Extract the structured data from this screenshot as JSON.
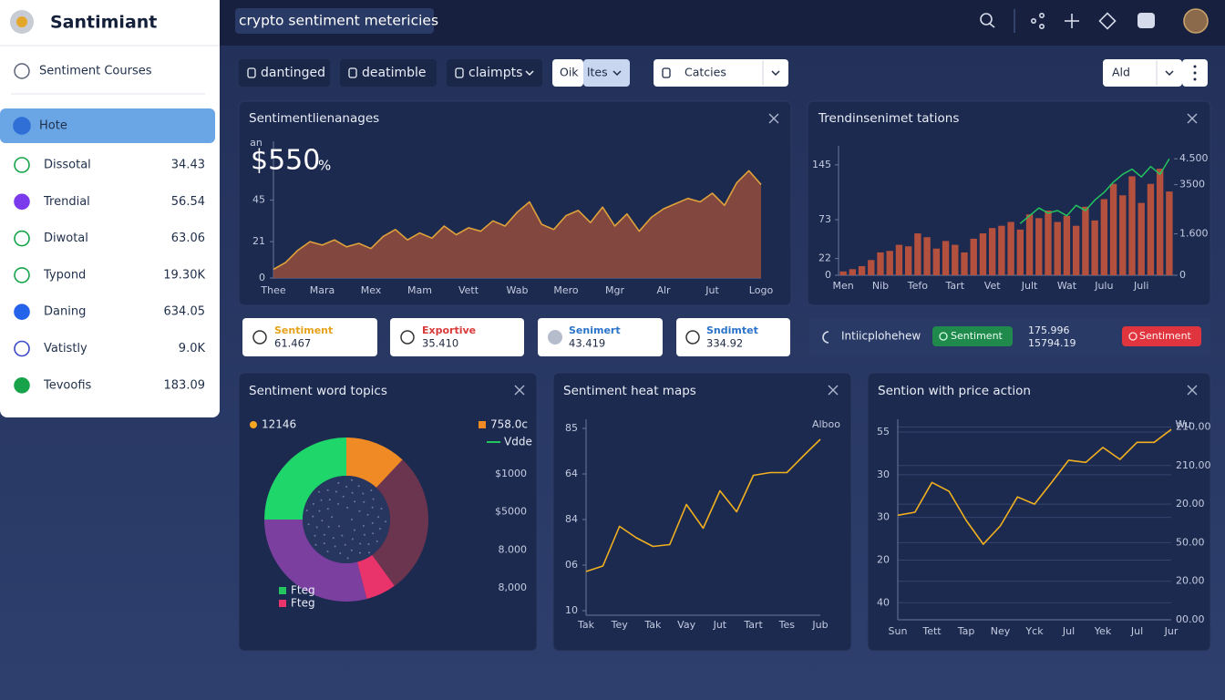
{
  "sidebar": {
    "brand": "Santimiant",
    "section": "Sentiment Courses",
    "items": [
      {
        "label": "Hote"
      },
      {
        "label": "Dissotal",
        "value": "34.43"
      },
      {
        "label": "Trendial",
        "value": "56.54"
      },
      {
        "label": "Diwotal",
        "value": "63.06"
      },
      {
        "label": "Typond",
        "value": "19.30K"
      },
      {
        "label": "Daning",
        "value": "634.05"
      },
      {
        "label": "Vatistly",
        "value": "9.0K"
      },
      {
        "label": "Tevoofis",
        "value": "183.09"
      }
    ]
  },
  "topbar": {
    "search": "crypto sentiment metericies"
  },
  "filters": [
    "dantinged",
    "deatimble",
    "claimpts",
    "Oik",
    "ltes",
    "Catcies",
    "Ald"
  ],
  "stat_cards": [
    {
      "label": "Sentiment",
      "value": "61.467"
    },
    {
      "label": "Exportive",
      "value": "35.410"
    },
    {
      "label": "Senimert",
      "value": "43.419"
    },
    {
      "label": "Sndimtet",
      "value": "334.92"
    }
  ],
  "status_bar": {
    "label": "Intiicplohehew",
    "badge_positive": "Sentiment",
    "value_1": "175.996",
    "value_2": "15794.19",
    "badge_negative": "Sentiment"
  },
  "chart_data": [
    {
      "type": "area",
      "title": "Sentimentlienanages",
      "headline": "$550",
      "headline_unit": "%",
      "ylabel": "an",
      "color": "#8e4a3c",
      "line_color": "#e0a23a",
      "categories": [
        "Thee",
        null,
        null,
        null,
        "Mara",
        null,
        null,
        null,
        "Mex",
        null,
        null,
        null,
        "Mam",
        null,
        null,
        null,
        "Vett",
        null,
        null,
        null,
        "Wab",
        null,
        null,
        null,
        "Mero",
        null,
        null,
        null,
        "Mgr",
        null,
        null,
        null,
        "Alr",
        null,
        null,
        null,
        "Jut",
        null,
        null,
        null,
        "Logo"
      ],
      "values": [
        5,
        9,
        16,
        21,
        19,
        22,
        18,
        20,
        17,
        24,
        28,
        22,
        26,
        23,
        30,
        25,
        29,
        27,
        33,
        30,
        38,
        44,
        31,
        28,
        36,
        39,
        32,
        41,
        30,
        37,
        27,
        35,
        40,
        43,
        46,
        44,
        49,
        42,
        55,
        62,
        54
      ],
      "ylim": [
        0,
        79
      ],
      "yticks": [
        0,
        21,
        45
      ],
      "grid": false
    },
    {
      "type": "bar",
      "title": "Trendinsenimet tations",
      "categories": [
        "Men",
        null,
        null,
        null,
        "Nib",
        null,
        null,
        null,
        "Tefo",
        null,
        null,
        null,
        "Tart",
        null,
        null,
        null,
        "Vet",
        null,
        null,
        null,
        "Jult",
        null,
        null,
        null,
        "Wat",
        null,
        null,
        null,
        "Julu",
        null,
        null,
        null,
        "Juli",
        null,
        null,
        null
      ],
      "series": [
        {
          "color": "#b4513e",
          "values": [
            5,
            8,
            12,
            20,
            30,
            32,
            40,
            38,
            55,
            50,
            35,
            45,
            40,
            30,
            48,
            55,
            62,
            65,
            70,
            60,
            80,
            75,
            85,
            70,
            78,
            65,
            90,
            72,
            100,
            120,
            105,
            130,
            95,
            120,
            140,
            110
          ]
        },
        {
          "color": "#22c55e",
          "axis": "y2",
          "values": [
            null,
            null,
            null,
            null,
            null,
            null,
            null,
            null,
            null,
            null,
            null,
            null,
            null,
            null,
            null,
            null,
            null,
            null,
            null,
            2000,
            2300,
            2600,
            2400,
            2500,
            2300,
            2700,
            2500,
            2900,
            3200,
            3600,
            3900,
            4100,
            3800,
            4200,
            3900,
            4500
          ]
        }
      ],
      "ylim": [
        0,
        170
      ],
      "yticks": [
        0,
        22,
        73,
        145
      ],
      "y2lim": [
        0,
        5000
      ],
      "y2ticks": [
        0,
        {
          "value": 1600,
          "label": "1.600"
        },
        3500,
        {
          "value": 4500,
          "label": "4.500"
        }
      ],
      "grid": false
    },
    {
      "type": "pie",
      "title": "Sentiment word topics",
      "values": [
        12,
        28,
        6,
        29,
        25
      ],
      "colors": [
        "#f08a24",
        "#6b3550",
        "#e8336b",
        "#7b3fa0",
        "#1fd66b"
      ],
      "legend": [
        {
          "label": "12146",
          "color": "#f5a623",
          "marker": "dot"
        },
        {
          "label": "758.0c",
          "color": "#f08a24",
          "marker": "square"
        },
        {
          "label": "Vdde",
          "color": "#22c55e",
          "marker": "line"
        },
        {
          "label": "Fteg",
          "color": "#22c55e",
          "marker": "square"
        },
        {
          "label": "Fteg",
          "color": "#e8336b",
          "marker": "square"
        }
      ],
      "side_labels": [
        "$1000",
        "$5000",
        "8.000",
        "8,000"
      ]
    },
    {
      "type": "line",
      "title": "Sentiment heat maps",
      "annotation": "Alboo",
      "color": "#f0b020",
      "categories": [
        "Tak",
        null,
        "Tey",
        null,
        "Tak",
        null,
        "Vay",
        null,
        "Jut",
        null,
        "Tart",
        null,
        "Tes",
        null,
        "Jub"
      ],
      "values": [
        0.86,
        0.98,
        1.85,
        1.6,
        1.41,
        1.45,
        2.33,
        1.81,
        2.63,
        2.17,
        2.97,
        3.03,
        3.03,
        3.4,
        3.76
      ],
      "ylim": [
        -0.1,
        4.2
      ],
      "yticks": [
        {
          "value": 4,
          "label": "85"
        },
        {
          "value": 3,
          "label": "64"
        },
        {
          "value": 2,
          "label": "84"
        },
        {
          "value": 1,
          "label": "06"
        },
        {
          "value": 0,
          "label": "10"
        }
      ],
      "grid": false
    },
    {
      "type": "line",
      "title": "Sention with price action",
      "annotation": "Wu",
      "color": "#f0b020",
      "categories": [
        "Sun",
        null,
        "Tett",
        null,
        "Tap",
        null,
        "Ney",
        null,
        "Yck",
        null,
        "Jul",
        null,
        "Yek",
        null,
        "Jul",
        null,
        "Jur"
      ],
      "values": [
        2.05,
        2.12,
        2.82,
        2.61,
        1.93,
        1.37,
        1.8,
        2.48,
        2.31,
        2.82,
        3.34,
        3.29,
        3.64,
        3.36,
        3.76,
        3.76,
        4.06
      ],
      "ylim": [
        -0.4,
        4.3
      ],
      "yticks": [
        {
          "value": 4,
          "label": "55"
        },
        {
          "value": 3,
          "label": "30"
        },
        {
          "value": 2,
          "label": "30"
        },
        {
          "value": 1,
          "label": "20"
        },
        {
          "value": 0,
          "label": "40"
        }
      ],
      "y2lim": [
        0,
        5.2
      ],
      "y2ticks": [
        {
          "value": 5,
          "label": "210.00"
        },
        {
          "value": 4,
          "label": "210.00"
        },
        {
          "value": 3,
          "label": "20.00"
        },
        {
          "value": 2,
          "label": "50.00"
        },
        {
          "value": 1,
          "label": "20.00"
        },
        {
          "value": 0,
          "label": "00.00"
        }
      ],
      "grid": true
    }
  ]
}
